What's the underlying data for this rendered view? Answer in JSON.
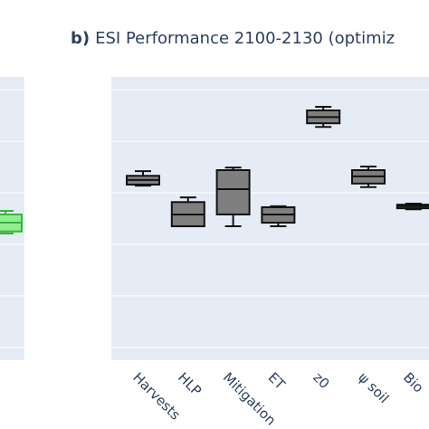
{
  "chart_data": [
    {
      "type": "box",
      "color": "#90ee90",
      "line_color": "#3cb043",
      "grid": true,
      "categories": [
        null
      ],
      "boxes": [
        {
          "whislo": 2.21,
          "q1": 2.25,
          "median": 2.42,
          "q3": 2.58,
          "whishi": 2.65
        }
      ],
      "ylim": [
        -0.25,
        5.25
      ],
      "yticks": [
        0,
        1,
        2,
        3,
        4,
        5
      ]
    },
    {
      "type": "box",
      "title_prefix": "b)",
      "title": "ESI Performance 2100-2130 (optimiz",
      "color": "#7f7f7f",
      "line_color": "#111111",
      "grid": true,
      "categories": [
        "Harvests",
        "HLP",
        "Mitigation",
        "ET",
        "z0",
        "ψ soil",
        "Bio"
      ],
      "boxes": [
        {
          "whislo": 3.14,
          "q1": 3.16,
          "median": 3.25,
          "q3": 3.33,
          "whishi": 3.42
        },
        {
          "whislo": 2.35,
          "q1": 2.35,
          "median": 2.58,
          "q3": 2.82,
          "whishi": 2.91
        },
        {
          "whislo": 2.35,
          "q1": 2.58,
          "median": 3.07,
          "q3": 3.44,
          "whishi": 3.49
        },
        {
          "whislo": 2.35,
          "q1": 2.42,
          "median": 2.58,
          "q3": 2.72,
          "whishi": 2.74
        },
        {
          "whislo": 4.28,
          "q1": 4.35,
          "median": 4.47,
          "q3": 4.6,
          "whishi": 4.67
        },
        {
          "whislo": 3.11,
          "q1": 3.18,
          "median": 3.32,
          "q3": 3.44,
          "whishi": 3.51
        },
        {
          "whislo": 2.68,
          "q1": 2.7,
          "median": 2.74,
          "q3": 2.77,
          "whishi": 2.79
        }
      ],
      "ylim": [
        -0.25,
        5.25
      ],
      "yticks": [
        0,
        1,
        2,
        3,
        4,
        5
      ]
    }
  ]
}
